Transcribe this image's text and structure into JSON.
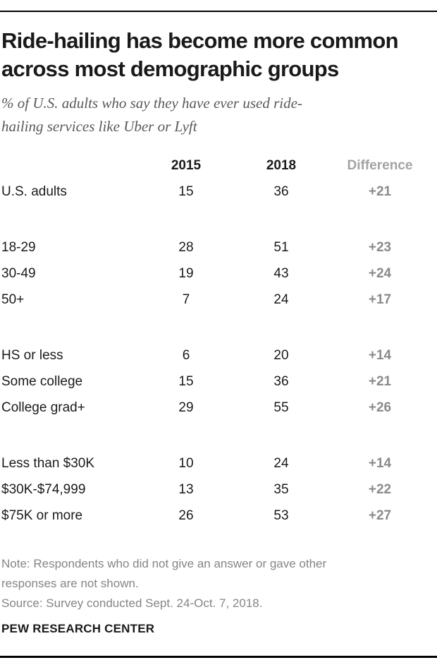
{
  "colors": {
    "background": "#ffffff",
    "text_black": "#1a1a1a",
    "subtitle_gray": "#56595c",
    "note_gray": "#858585",
    "diff_header_gray": "#a3a3a3",
    "diff_value_gray": "#8a8a8a",
    "rule_black": "#000000"
  },
  "header": {
    "title_line1": "Ride-hailing has become more common",
    "title_line2": "across most demographic groups",
    "subtitle_line1": "% of U.S. adults who say they have ever used ride-",
    "subtitle_line2": "hailing services like Uber or Lyft"
  },
  "table": {
    "columns": [
      "2015",
      "2018",
      "Difference"
    ],
    "rows": [
      {
        "label": "U.S. adults",
        "v2015": "15",
        "v2018": "36",
        "diff": "+21"
      },
      {
        "label": "18-29",
        "v2015": "28",
        "v2018": "51",
        "diff": "+23"
      },
      {
        "label": "30-49",
        "v2015": "19",
        "v2018": "43",
        "diff": "+24"
      },
      {
        "label": "50+",
        "v2015": "7",
        "v2018": "24",
        "diff": "+17"
      },
      {
        "label": "HS or less",
        "v2015": "6",
        "v2018": "20",
        "diff": "+14"
      },
      {
        "label": "Some college",
        "v2015": "15",
        "v2018": "36",
        "diff": "+21"
      },
      {
        "label": "College grad+",
        "v2015": "29",
        "v2018": "55",
        "diff": "+26"
      },
      {
        "label": "Less than $30K",
        "v2015": "10",
        "v2018": "24",
        "diff": "+14"
      },
      {
        "label": "$30K-$74,999",
        "v2015": "13",
        "v2018": "35",
        "diff": "+22"
      },
      {
        "label": "$75K or more",
        "v2015": "26",
        "v2018": "53",
        "diff": "+27"
      }
    ]
  },
  "footer": {
    "note_line1": "Note: Respondents who did not give an answer or gave other",
    "note_line2": "responses are not shown.",
    "source": "Source: Survey conducted Sept. 24-Oct. 7, 2018.",
    "brand": "PEW RESEARCH CENTER"
  },
  "chart_data": {
    "type": "table",
    "title": "Ride-hailing has become more common across most demographic groups",
    "subtitle": "% of U.S. adults who say they have ever used ride-hailing services like Uber or Lyft",
    "categories": [
      "U.S. adults",
      "18-29",
      "30-49",
      "50+",
      "HS or less",
      "Some college",
      "College grad+",
      "Less than $30K",
      "$30K-$74,999",
      "$75K or more"
    ],
    "series": [
      {
        "name": "2015",
        "values": [
          15,
          28,
          19,
          7,
          6,
          15,
          29,
          10,
          13,
          26
        ]
      },
      {
        "name": "2018",
        "values": [
          36,
          51,
          43,
          24,
          20,
          36,
          55,
          24,
          35,
          53
        ]
      },
      {
        "name": "Difference",
        "values": [
          "+21",
          "+23",
          "+24",
          "+17",
          "+14",
          "+21",
          "+26",
          "+14",
          "+22",
          "+27"
        ]
      }
    ],
    "row_groups": [
      [
        0
      ],
      [
        1,
        2,
        3
      ],
      [
        4,
        5,
        6
      ],
      [
        7,
        8,
        9
      ]
    ],
    "note": "Note: Respondents who did not give an answer or gave other responses are not shown.",
    "source": "Source: Survey conducted Sept. 24-Oct. 7, 2018.",
    "branding": "PEW RESEARCH CENTER"
  }
}
